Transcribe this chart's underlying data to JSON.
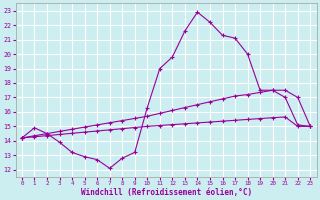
{
  "xlabel": "Windchill (Refroidissement éolien,°C)",
  "bg_color": "#cceef0",
  "grid_color": "#ffffff",
  "line_color": "#990099",
  "xlim": [
    -0.5,
    23.5
  ],
  "ylim": [
    11.5,
    23.5
  ],
  "yticks": [
    12,
    13,
    14,
    15,
    16,
    17,
    18,
    19,
    20,
    21,
    22,
    23
  ],
  "xticks": [
    0,
    1,
    2,
    3,
    4,
    5,
    6,
    7,
    8,
    9,
    10,
    11,
    12,
    13,
    14,
    15,
    16,
    17,
    18,
    19,
    20,
    21,
    22,
    23
  ],
  "line1_x": [
    0,
    1,
    2,
    3,
    4,
    5,
    6,
    7,
    8,
    9,
    10,
    11,
    12,
    13,
    14,
    15,
    16,
    17,
    18,
    19,
    20,
    21,
    22,
    23
  ],
  "line1_y": [
    14.2,
    14.9,
    14.5,
    13.9,
    13.2,
    12.9,
    12.7,
    12.1,
    12.8,
    13.2,
    16.3,
    19.0,
    19.8,
    21.6,
    22.9,
    22.2,
    21.3,
    21.1,
    20.0,
    17.5,
    17.5,
    17.0,
    15.1,
    15.0
  ],
  "line2_x": [
    0,
    1,
    2,
    3,
    4,
    5,
    6,
    7,
    8,
    9,
    10,
    11,
    12,
    13,
    14,
    15,
    16,
    17,
    18,
    19,
    20,
    21,
    22,
    23
  ],
  "line2_y": [
    14.2,
    14.35,
    14.5,
    14.65,
    14.8,
    14.95,
    15.1,
    15.25,
    15.4,
    15.55,
    15.7,
    15.9,
    16.1,
    16.3,
    16.5,
    16.7,
    16.9,
    17.1,
    17.2,
    17.35,
    17.5,
    17.5,
    17.0,
    15.0
  ],
  "line3_x": [
    0,
    1,
    2,
    3,
    4,
    5,
    6,
    7,
    8,
    9,
    10,
    11,
    12,
    13,
    14,
    15,
    16,
    17,
    18,
    19,
    20,
    21,
    22,
    23
  ],
  "line3_y": [
    14.2,
    14.28,
    14.36,
    14.44,
    14.52,
    14.6,
    14.68,
    14.76,
    14.84,
    14.92,
    15.0,
    15.06,
    15.12,
    15.18,
    15.24,
    15.3,
    15.36,
    15.42,
    15.48,
    15.54,
    15.6,
    15.65,
    15.0,
    15.0
  ]
}
